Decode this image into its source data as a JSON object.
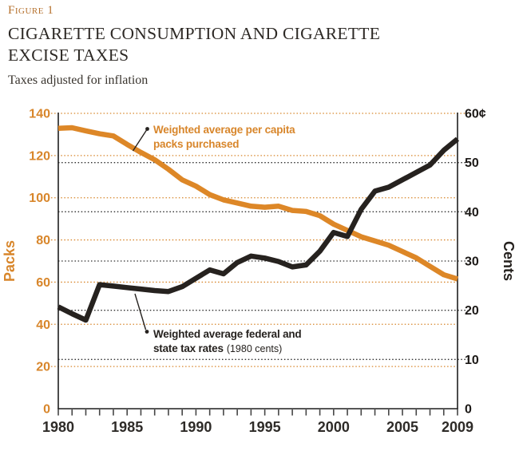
{
  "header": {
    "figure_label": "Figure 1",
    "title_line1": "CIGARETTE CONSUMPTION AND CIGARETTE",
    "title_line2": "EXCISE TAXES",
    "subtitle": "Taxes adjusted for inflation"
  },
  "colors": {
    "accent_orange": "#d8862b",
    "line_orange": "#dd8727",
    "line_black": "#26221f",
    "figure_label_orange": "#b5702c",
    "axis_black": "#1f1f1f"
  },
  "left_axis": {
    "label": "Packs",
    "tick_labels": [
      "140",
      "120",
      "100",
      "80",
      "60",
      "40",
      "20",
      "0"
    ],
    "tick_values": [
      140,
      120,
      100,
      80,
      60,
      40,
      20,
      0
    ]
  },
  "right_axis": {
    "label": "Cents",
    "tick_labels": [
      "60¢",
      "50",
      "40",
      "30",
      "20",
      "10",
      "0"
    ],
    "tick_values": [
      60,
      50,
      40,
      30,
      20,
      10,
      0
    ]
  },
  "x_axis": {
    "tick_labels": [
      "1980",
      "1985",
      "1990",
      "1995",
      "2000",
      "2005",
      "2009"
    ],
    "tick_values": [
      1980,
      1985,
      1990,
      1995,
      2000,
      2005,
      2009
    ]
  },
  "annotations": {
    "packs": {
      "line1": "Weighted average per capita",
      "line2": "packs purchased"
    },
    "tax": {
      "line1": "Weighted average federal and",
      "line2_bold": "state tax rates",
      "line2_normal": "(1980 cents)"
    }
  },
  "chart_data": {
    "type": "line",
    "title": "Cigarette Consumption and Cigarette Excise Taxes",
    "subtitle": "Taxes adjusted for inflation",
    "x": [
      1980,
      1981,
      1982,
      1983,
      1984,
      1985,
      1986,
      1987,
      1988,
      1989,
      1990,
      1991,
      1992,
      1993,
      1994,
      1995,
      1996,
      1997,
      1998,
      1999,
      2000,
      2001,
      2002,
      2003,
      2004,
      2005,
      2006,
      2007,
      2008,
      2009
    ],
    "series": [
      {
        "name": "Weighted average per capita packs purchased",
        "axis": "left",
        "unit": "packs",
        "color": "#dd8727",
        "values": [
          132.9,
          133.2,
          131.7,
          130.3,
          129.3,
          125.3,
          121.5,
          118.0,
          113.5,
          108.5,
          105.5,
          101.5,
          99.0,
          97.5,
          96.0,
          95.5,
          96.0,
          94.0,
          93.5,
          91.5,
          87.5,
          84.5,
          81.5,
          79.5,
          77.5,
          74.5,
          71.5,
          67.5,
          63.5,
          61.5
        ]
      },
      {
        "name": "Weighted average federal and state tax rates (1980 cents)",
        "axis": "right",
        "unit": "cents",
        "color": "#26221f",
        "values": [
          20.7,
          19.3,
          18.0,
          25.2,
          24.9,
          24.6,
          24.3,
          24.0,
          23.8,
          24.8,
          26.5,
          28.2,
          27.4,
          29.7,
          31.0,
          30.6,
          29.9,
          28.8,
          29.2,
          32.0,
          35.8,
          35.0,
          40.5,
          44.2,
          45.0,
          46.5,
          48.0,
          49.5,
          52.5,
          54.8
        ]
      }
    ],
    "left_axis_label": "Packs",
    "right_axis_label": "Cents",
    "left_ylim": [
      0,
      140
    ],
    "right_ylim": [
      0,
      60
    ],
    "xlim": [
      1980,
      2009
    ],
    "grid": "horizontal dotted; orange lines keyed to left axis, black lines keyed to right axis",
    "legend_position": "inline annotations with pointer lines"
  }
}
